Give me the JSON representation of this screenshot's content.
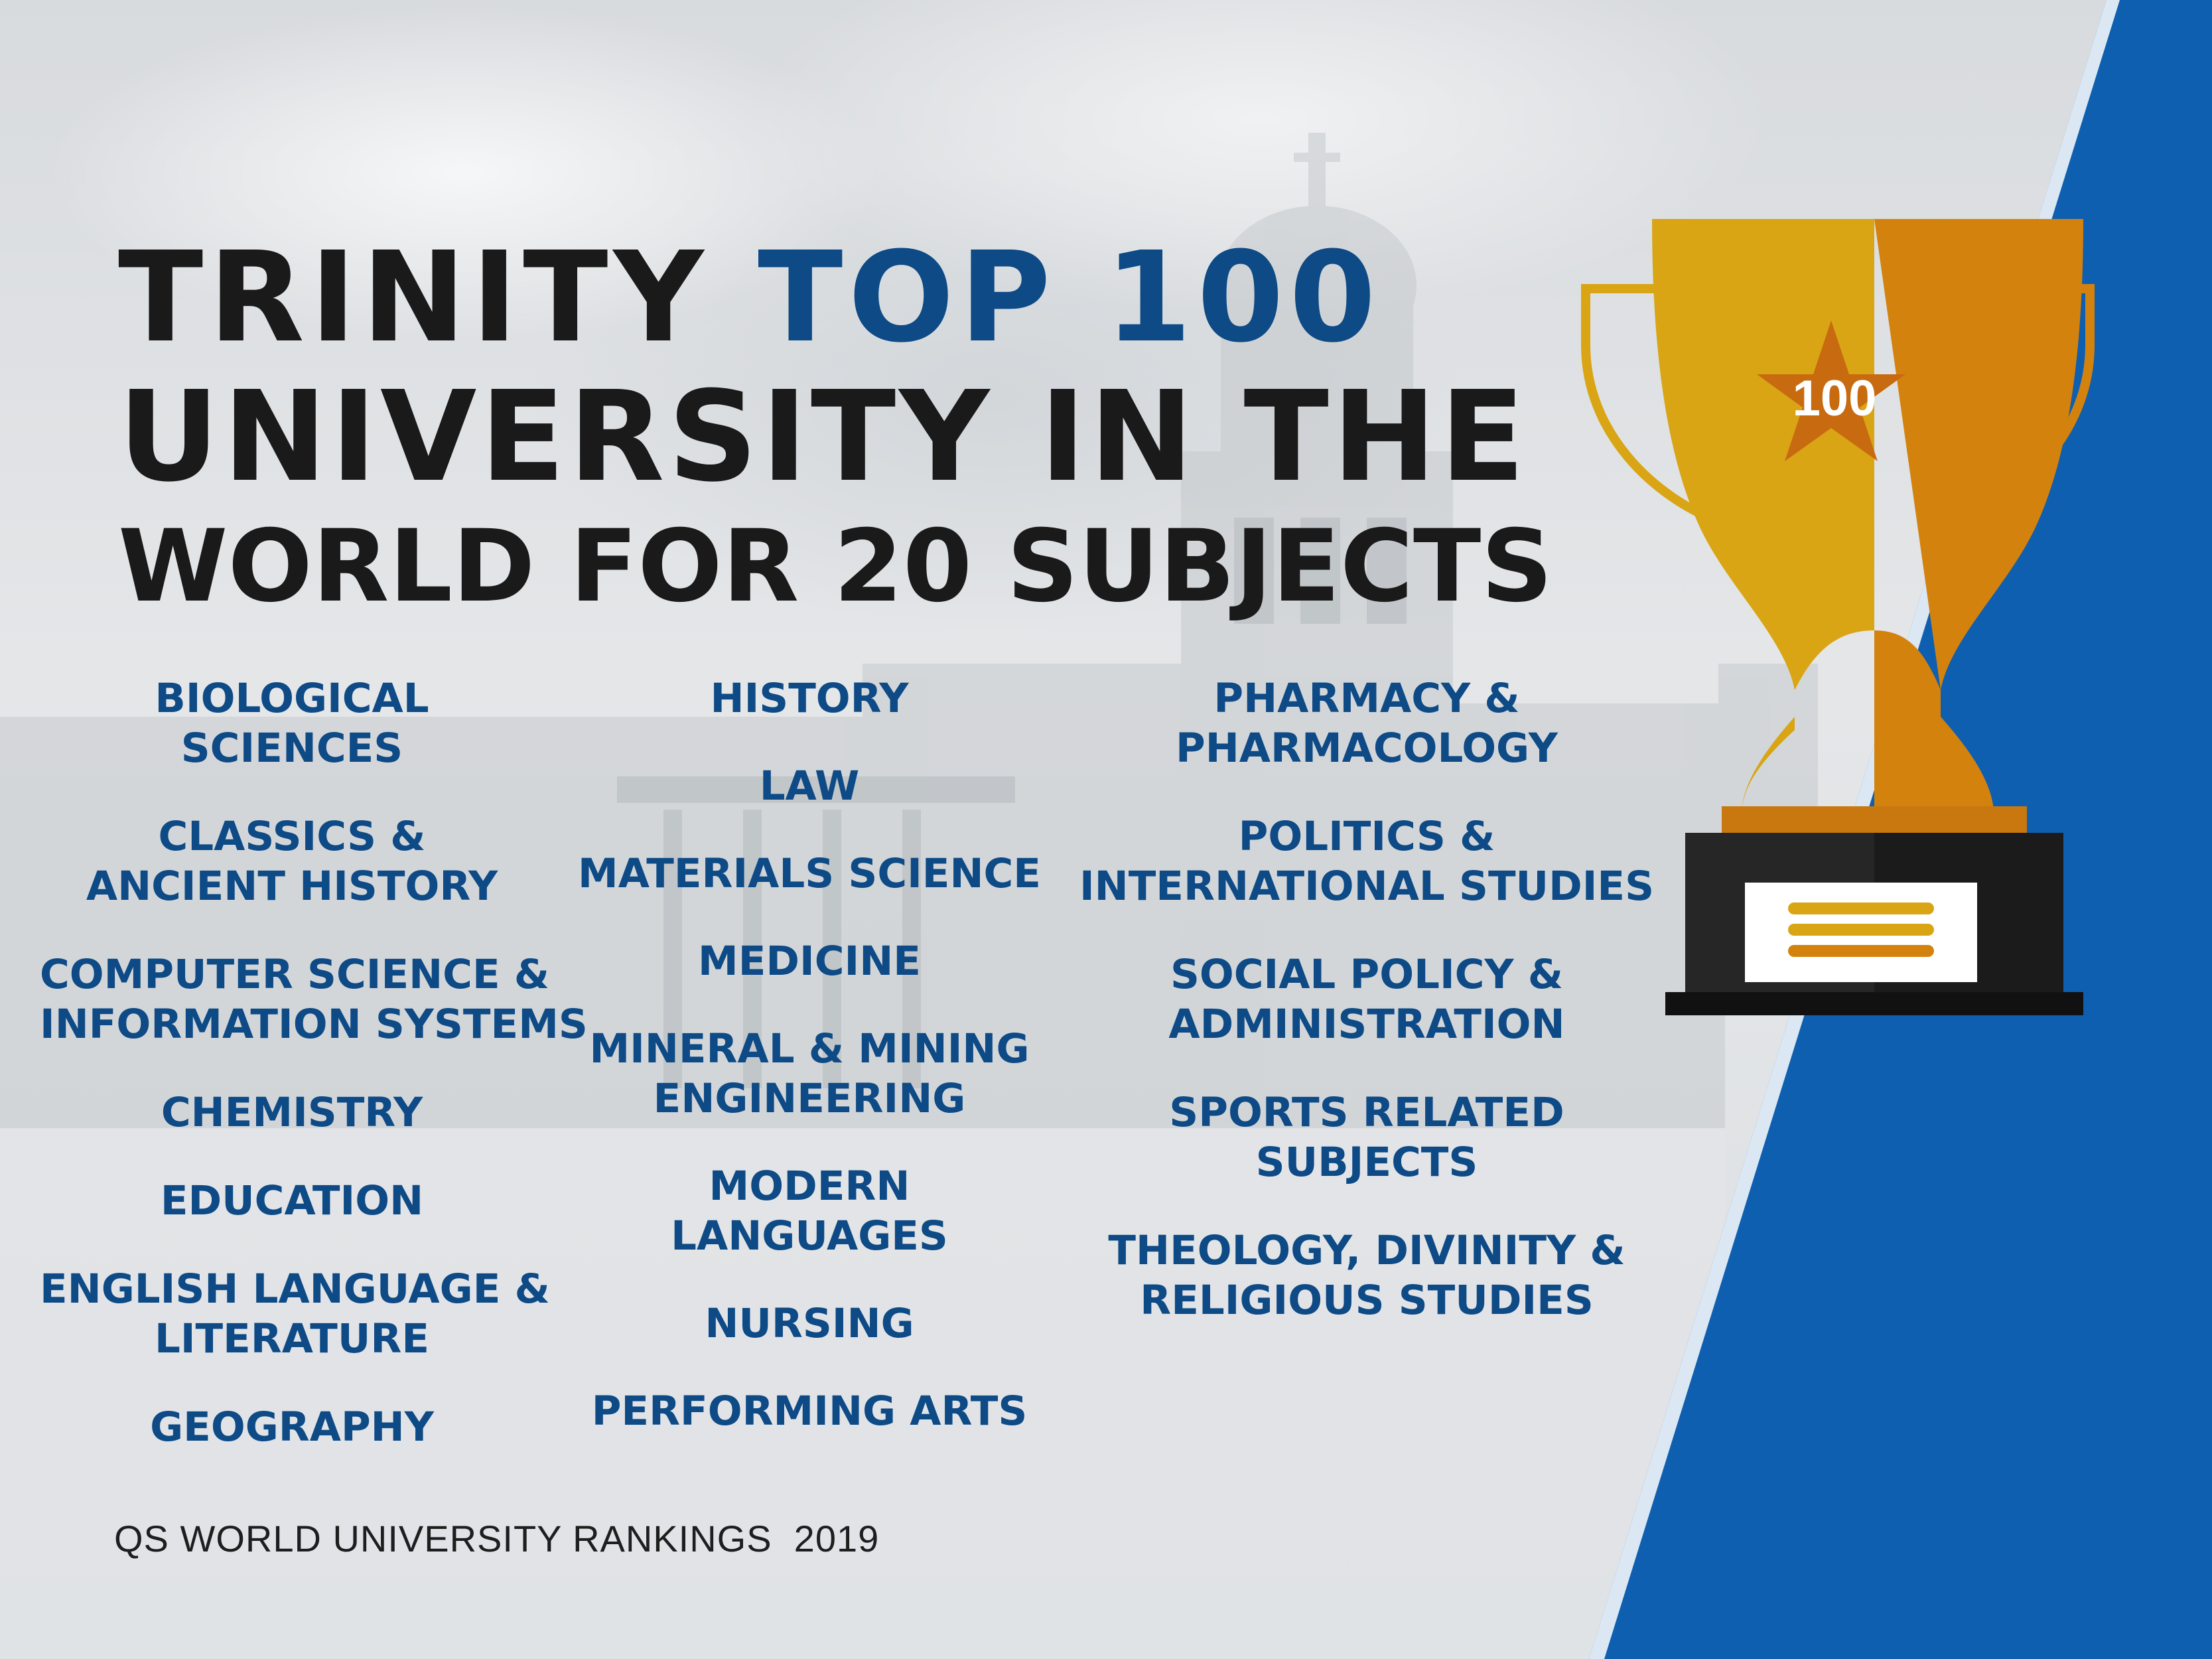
{
  "headline": {
    "line1_a": "TRINITY ",
    "line1_b": "TOP 100",
    "line2": "UNIVERSITY IN THE",
    "line3": "WORLD FOR 20 SUBJECTS"
  },
  "subjects": {
    "column1": [
      "BIOLOGICAL",
      "SCIENCES",
      "CLASSICS &",
      "ANCIENT HISTORY",
      "COMPUTER SCIENCE &",
      "INFORMATION SYSTEMS",
      "CHEMISTRY",
      "EDUCATION",
      "ENGLISH LANGUAGE &",
      "LITERATURE",
      "GEOGRAPHY"
    ],
    "column2": [
      "HISTORY",
      "LAW",
      "MATERIALS SCIENCE",
      "MEDICINE",
      "MINERAL & MINING",
      "ENGINEERING",
      "MODERN",
      "LANGUAGES",
      "NURSING",
      "PERFORMING ARTS"
    ],
    "column3": [
      "PHARMACY &",
      "PHARMACOLOGY",
      "POLITICS &",
      "INTERNATIONAL STUDIES",
      "SOCIAL POLICY &",
      "ADMINISTRATION",
      "SPORTS RELATED",
      "SUBJECTS",
      "THEOLOGY, DIVINITY &",
      "RELIGIOUS STUDIES"
    ]
  },
  "trophy": {
    "star_label": "100",
    "icon": "trophy-icon"
  },
  "footer": "QS WORLD UNIVERSITY RANKINGS  2019",
  "colors": {
    "headline_dark": "#1a1a1a",
    "accent_blue": "#0d4a86",
    "panel_blue": "#0e5fb0",
    "trophy_gold": "#d9a514",
    "trophy_orange": "#d4820e",
    "base_dark": "#262626"
  }
}
